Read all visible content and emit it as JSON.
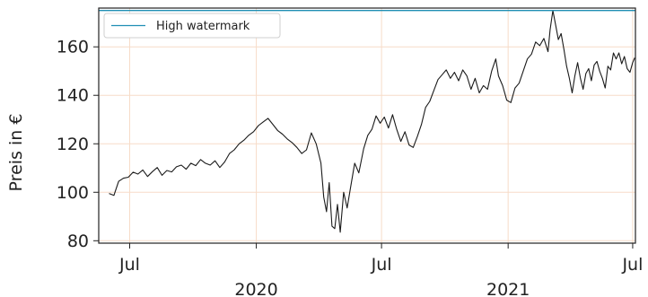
{
  "chart_data": {
    "type": "line",
    "ylabel": "Preis in €",
    "xlabel": "",
    "ylim": [
      79,
      176
    ],
    "xlim": [
      "2019-05-17",
      "2021-07-05"
    ],
    "grid": true,
    "legend_placement": "top-left",
    "colors": {
      "price": "#1a1a1a",
      "high_watermark": "#1f8fb4",
      "grid": "#f7dcc8"
    },
    "y_ticks": [
      80,
      100,
      120,
      140,
      160
    ],
    "x_ticks": [
      {
        "date": "2019-07-01",
        "label": "Jul",
        "sublabel": ""
      },
      {
        "date": "2020-01-01",
        "label": "",
        "sublabel": "2020"
      },
      {
        "date": "2020-07-01",
        "label": "Jul",
        "sublabel": ""
      },
      {
        "date": "2021-01-01",
        "label": "",
        "sublabel": "2021"
      },
      {
        "date": "2021-07-01",
        "label": "Jul",
        "sublabel": ""
      }
    ],
    "series": [
      {
        "name": "",
        "points": [
          [
            "2019-06-01",
            99.5
          ],
          [
            "2019-06-08",
            98.7
          ],
          [
            "2019-06-15",
            104.5
          ],
          [
            "2019-06-22",
            105.8
          ],
          [
            "2019-06-29",
            106.2
          ],
          [
            "2019-07-06",
            108.3
          ],
          [
            "2019-07-13",
            107.5
          ],
          [
            "2019-07-20",
            109.2
          ],
          [
            "2019-07-27",
            106.5
          ],
          [
            "2019-08-03",
            108.5
          ],
          [
            "2019-08-10",
            110.2
          ],
          [
            "2019-08-17",
            107.0
          ],
          [
            "2019-08-24",
            109.0
          ],
          [
            "2019-08-31",
            108.4
          ],
          [
            "2019-09-07",
            110.5
          ],
          [
            "2019-09-14",
            111.2
          ],
          [
            "2019-09-21",
            109.5
          ],
          [
            "2019-09-28",
            112.0
          ],
          [
            "2019-10-05",
            111.0
          ],
          [
            "2019-10-12",
            113.5
          ],
          [
            "2019-10-19",
            112.0
          ],
          [
            "2019-10-26",
            111.2
          ],
          [
            "2019-11-02",
            113.0
          ],
          [
            "2019-11-09",
            110.2
          ],
          [
            "2019-11-16",
            112.5
          ],
          [
            "2019-11-23",
            116.0
          ],
          [
            "2019-11-30",
            117.5
          ],
          [
            "2019-12-07",
            120.0
          ],
          [
            "2019-12-14",
            121.5
          ],
          [
            "2019-12-21",
            123.5
          ],
          [
            "2019-12-28",
            125.0
          ],
          [
            "2020-01-04",
            127.5
          ],
          [
            "2020-01-11",
            129.0
          ],
          [
            "2020-01-18",
            130.5
          ],
          [
            "2020-01-25",
            128.0
          ],
          [
            "2020-02-01",
            125.5
          ],
          [
            "2020-02-08",
            124.0
          ],
          [
            "2020-02-15",
            122.0
          ],
          [
            "2020-02-22",
            120.5
          ],
          [
            "2020-02-29",
            118.5
          ],
          [
            "2020-03-07",
            116.0
          ],
          [
            "2020-03-14",
            117.5
          ],
          [
            "2020-03-21",
            124.5
          ],
          [
            "2020-03-28",
            120.0
          ],
          [
            "2020-04-04",
            112.0
          ],
          [
            "2020-04-08",
            98.0
          ],
          [
            "2020-04-12",
            92.0
          ],
          [
            "2020-04-16",
            104.0
          ],
          [
            "2020-04-20",
            86.0
          ],
          [
            "2020-04-24",
            85.0
          ],
          [
            "2020-04-28",
            95.0
          ],
          [
            "2020-05-02",
            83.5
          ],
          [
            "2020-05-07",
            100.0
          ],
          [
            "2020-05-12",
            93.5
          ],
          [
            "2020-05-17",
            102.0
          ],
          [
            "2020-05-23",
            112.0
          ],
          [
            "2020-05-29",
            108.0
          ],
          [
            "2020-06-05",
            118.0
          ],
          [
            "2020-06-11",
            123.5
          ],
          [
            "2020-06-17",
            126.0
          ],
          [
            "2020-06-23",
            131.5
          ],
          [
            "2020-06-29",
            128.5
          ],
          [
            "2020-07-05",
            131.0
          ],
          [
            "2020-07-11",
            126.5
          ],
          [
            "2020-07-17",
            132.0
          ],
          [
            "2020-07-23",
            126.0
          ],
          [
            "2020-07-29",
            121.0
          ],
          [
            "2020-08-04",
            125.0
          ],
          [
            "2020-08-10",
            119.5
          ],
          [
            "2020-08-16",
            118.5
          ],
          [
            "2020-08-22",
            123.0
          ],
          [
            "2020-08-28",
            128.0
          ],
          [
            "2020-09-03",
            135.0
          ],
          [
            "2020-09-09",
            137.5
          ],
          [
            "2020-09-15",
            142.0
          ],
          [
            "2020-09-21",
            146.5
          ],
          [
            "2020-09-27",
            148.5
          ],
          [
            "2020-10-03",
            150.5
          ],
          [
            "2020-10-09",
            147.0
          ],
          [
            "2020-10-15",
            149.5
          ],
          [
            "2020-10-21",
            146.0
          ],
          [
            "2020-10-27",
            150.5
          ],
          [
            "2020-11-02",
            148.0
          ],
          [
            "2020-11-08",
            142.5
          ],
          [
            "2020-11-14",
            147.0
          ],
          [
            "2020-11-20",
            141.0
          ],
          [
            "2020-11-26",
            144.0
          ],
          [
            "2020-12-02",
            142.5
          ],
          [
            "2020-12-08",
            150.0
          ],
          [
            "2020-12-14",
            155.0
          ],
          [
            "2020-12-18",
            148.0
          ],
          [
            "2020-12-24",
            144.0
          ],
          [
            "2020-12-30",
            138.0
          ],
          [
            "2021-01-05",
            137.0
          ],
          [
            "2021-01-11",
            143.0
          ],
          [
            "2021-01-17",
            145.0
          ],
          [
            "2021-01-23",
            150.0
          ],
          [
            "2021-01-29",
            155.0
          ],
          [
            "2021-02-04",
            157.0
          ],
          [
            "2021-02-10",
            162.0
          ],
          [
            "2021-02-16",
            160.5
          ],
          [
            "2021-02-22",
            163.5
          ],
          [
            "2021-02-28",
            158.0
          ],
          [
            "2021-03-03",
            167.0
          ],
          [
            "2021-03-07",
            175.0
          ],
          [
            "2021-03-11",
            169.0
          ],
          [
            "2021-03-15",
            163.0
          ],
          [
            "2021-03-19",
            165.5
          ],
          [
            "2021-03-23",
            159.0
          ],
          [
            "2021-03-27",
            152.0
          ],
          [
            "2021-03-31",
            147.0
          ],
          [
            "2021-04-04",
            141.0
          ],
          [
            "2021-04-08",
            148.0
          ],
          [
            "2021-04-12",
            153.5
          ],
          [
            "2021-04-16",
            147.0
          ],
          [
            "2021-04-20",
            142.5
          ],
          [
            "2021-04-24",
            149.0
          ],
          [
            "2021-04-28",
            151.0
          ],
          [
            "2021-05-02",
            146.0
          ],
          [
            "2021-05-06",
            152.5
          ],
          [
            "2021-05-10",
            154.0
          ],
          [
            "2021-05-14",
            150.0
          ],
          [
            "2021-05-18",
            147.0
          ],
          [
            "2021-05-22",
            143.0
          ],
          [
            "2021-05-26",
            152.0
          ],
          [
            "2021-05-30",
            150.5
          ],
          [
            "2021-06-03",
            157.5
          ],
          [
            "2021-06-07",
            155.0
          ],
          [
            "2021-06-11",
            157.5
          ],
          [
            "2021-06-15",
            153.0
          ],
          [
            "2021-06-19",
            156.0
          ],
          [
            "2021-06-23",
            151.0
          ],
          [
            "2021-06-27",
            149.5
          ],
          [
            "2021-07-01",
            153.5
          ],
          [
            "2021-07-04",
            155.5
          ]
        ]
      },
      {
        "name": "High watermark",
        "value": 175
      }
    ]
  }
}
